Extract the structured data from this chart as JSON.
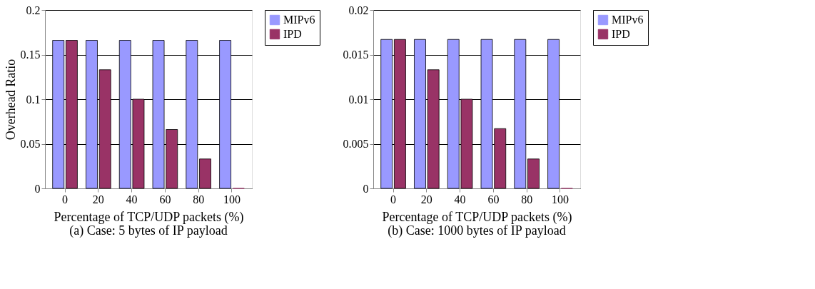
{
  "chart_data": [
    {
      "type": "bar",
      "xlabel": "Percentage of TCP/UDP packets (%)",
      "ylabel": "Overhead Ratio",
      "categories": [
        "0",
        "20",
        "40",
        "60",
        "80",
        "100"
      ],
      "series": [
        {
          "name": "MIPv6",
          "color": "#9999ff",
          "values": [
            0.166,
            0.166,
            0.166,
            0.166,
            0.166,
            0.166
          ]
        },
        {
          "name": "IPD",
          "color": "#993366",
          "values": [
            0.166,
            0.133,
            0.1,
            0.066,
            0.033,
            0
          ]
        }
      ],
      "ylim": [
        0,
        0.2
      ],
      "yticks": [
        0,
        0.05,
        0.1,
        0.15,
        0.2
      ],
      "grid": "y",
      "legend": "right",
      "annotations": [
        "(a) Case: 5 bytes of IP payload"
      ]
    },
    {
      "type": "bar",
      "xlabel": "Percentage of TCP/UDP packets (%)",
      "categories": [
        "0",
        "20",
        "40",
        "60",
        "80",
        "100"
      ],
      "series": [
        {
          "name": "MIPv6",
          "color": "#9999ff",
          "values": [
            0.0167,
            0.0167,
            0.0167,
            0.0167,
            0.0167,
            0.0167
          ]
        },
        {
          "name": "IPD",
          "color": "#993366",
          "values": [
            0.0167,
            0.0133,
            0.01,
            0.0067,
            0.0033,
            0
          ]
        }
      ],
      "ylim": [
        0,
        0.02
      ],
      "yticks": [
        0,
        0.005,
        0.01,
        0.015,
        0.02
      ],
      "grid": "y",
      "legend": "right",
      "annotations": [
        "(b) Case: 1000 bytes of IP payload"
      ]
    }
  ]
}
